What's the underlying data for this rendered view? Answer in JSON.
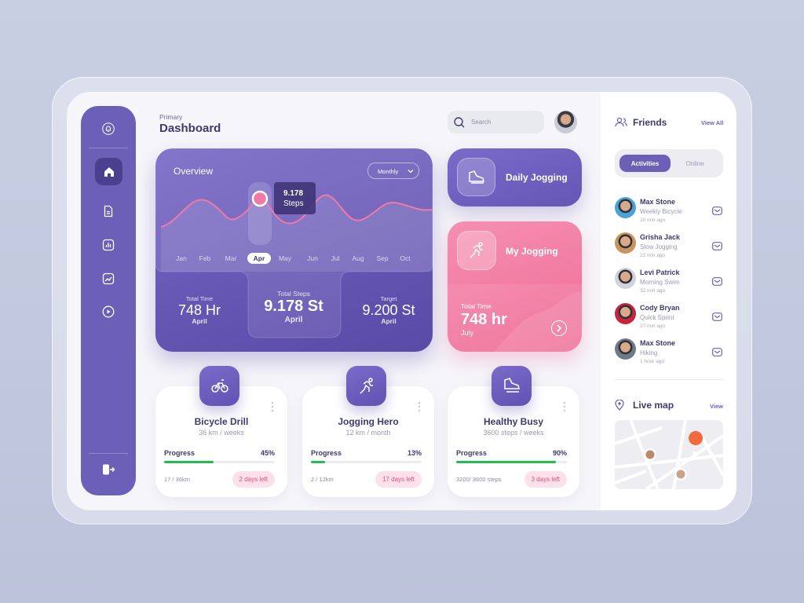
{
  "header": {
    "subtitle": "Primary",
    "title": "Dashboard",
    "search_placeholder": "Search"
  },
  "overview": {
    "title": "Overview",
    "period": "Monthly",
    "months": [
      "Jan",
      "Feb",
      "Mar",
      "Apr",
      "May",
      "Jun",
      "Jul",
      "Aug",
      "Sep",
      "Oct"
    ],
    "tooltip": {
      "value": "9.178",
      "label": "Steps"
    },
    "stats": [
      {
        "label": "Total Time",
        "value": "748 Hr",
        "period": "April"
      },
      {
        "label": "Total Steps",
        "value": "9.178 St",
        "period": "April"
      },
      {
        "label": "Target",
        "value": "9.200 St",
        "period": "April"
      }
    ]
  },
  "daily_jogging": {
    "title": "Daily Jogging"
  },
  "my_jogging": {
    "title": "My Jogging",
    "label": "Total Time",
    "value": "748 hr",
    "period": "July"
  },
  "activities": [
    {
      "title": "Bicycle Drill",
      "detail": "36 km / weeks",
      "progress_label": "Progress",
      "progress": {
        "value": 45,
        "label": "45%"
      },
      "count": "17 / 36km",
      "remaining": "2 days left"
    },
    {
      "title": "Jogging Hero",
      "detail": "12 km / month",
      "progress_label": "Progress",
      "progress": {
        "value": 13,
        "label": "13%"
      },
      "count": "2 / 12km",
      "remaining": "17 days left"
    },
    {
      "title": "Healthy Busy",
      "detail": "3600 steps / weeks",
      "progress_label": "Progress",
      "progress": {
        "value": 90,
        "label": "90%"
      },
      "count": "3200/ 3600 steps",
      "remaining": "3 days left"
    }
  ],
  "friends": {
    "title": "Friends",
    "view_all": "View All",
    "tabs": [
      "Activities",
      "Online"
    ],
    "list": [
      {
        "name": "Max Stone",
        "activity": "Weekly Bicycle",
        "time": "10 min ago"
      },
      {
        "name": "Grisha Jack",
        "activity": "Slow Jogging",
        "time": "22 min ago"
      },
      {
        "name": "Levi Patrick",
        "activity": "Morning Swim",
        "time": "32 min ago"
      },
      {
        "name": "Cody Bryan",
        "activity": "Quick Sprint",
        "time": "37 min ago"
      },
      {
        "name": "Max Stone",
        "activity": "Hiking",
        "time": "1 hour ago"
      }
    ]
  },
  "live_map": {
    "title": "Live map",
    "view": "View"
  }
}
